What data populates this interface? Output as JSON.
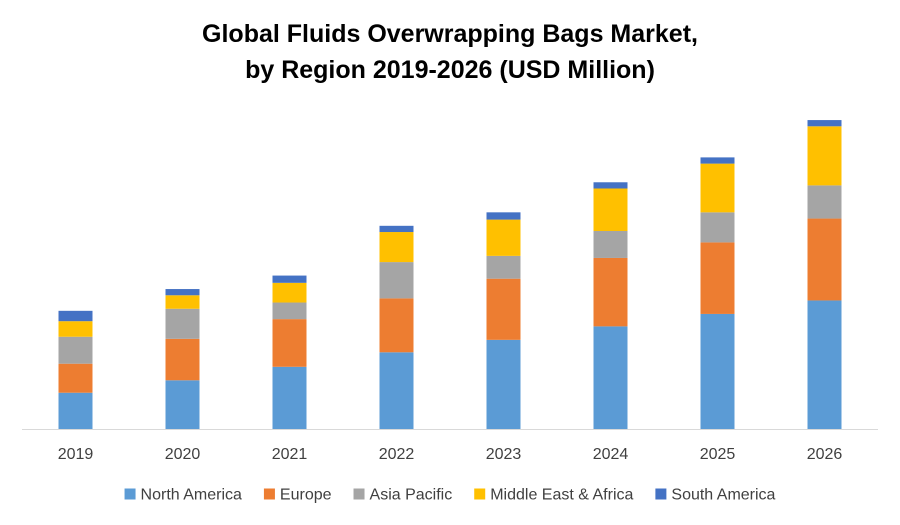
{
  "chart_data": {
    "type": "bar",
    "stacked": true,
    "title_line_1": "Global Fluids Overwrapping Bags Market,",
    "title_line_2": "by Region 2019-2026 (USD Million)",
    "xlabel": "",
    "ylabel": "",
    "categories": [
      "2019",
      "2020",
      "2021",
      "2022",
      "2023",
      "2024",
      "2025",
      "2026"
    ],
    "series": [
      {
        "name": "North America",
        "color": "#5B9BD5",
        "values": [
          35,
          47,
          60,
          74,
          86,
          99,
          111,
          124
        ]
      },
      {
        "name": "Europe",
        "color": "#ED7D31",
        "values": [
          28,
          40,
          46,
          52,
          59,
          66,
          69,
          79
        ]
      },
      {
        "name": "Asia Pacific",
        "color": "#A5A5A5",
        "values": [
          26,
          29,
          16,
          35,
          22,
          26,
          29,
          32
        ]
      },
      {
        "name": "Middle East & Africa",
        "color": "#FFC000",
        "values": [
          15,
          13,
          19,
          29,
          35,
          41,
          47,
          57
        ]
      },
      {
        "name": "South America",
        "color": "#4472C4",
        "values": [
          10,
          6,
          7,
          6,
          7,
          6,
          6,
          6
        ]
      }
    ],
    "ylim": [
      0,
      300
    ],
    "y_axis_visible": false,
    "grid": false,
    "legend": "bottom",
    "axis_color": "#D9D9D9",
    "tick_label_color": "#404040"
  }
}
